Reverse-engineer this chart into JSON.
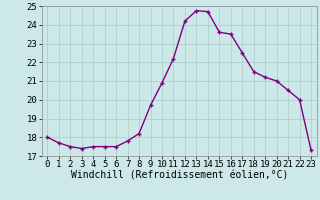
{
  "x": [
    0,
    1,
    2,
    3,
    4,
    5,
    6,
    7,
    8,
    9,
    10,
    11,
    12,
    13,
    14,
    15,
    16,
    17,
    18,
    19,
    20,
    21,
    22,
    23
  ],
  "y": [
    18.0,
    17.7,
    17.5,
    17.4,
    17.5,
    17.5,
    17.5,
    17.8,
    18.2,
    19.7,
    20.9,
    22.2,
    24.2,
    24.75,
    24.7,
    23.6,
    23.5,
    22.5,
    21.5,
    21.2,
    21.0,
    20.5,
    20.0,
    17.3
  ],
  "line_color": "#800080",
  "marker": "+",
  "bg_color": "#cce8e8",
  "grid_color": "#aacccc",
  "xlabel": "Windchill (Refroidissement éolien,°C)",
  "xlabel_fontsize": 7,
  "tick_fontsize": 6.5,
  "ylim": [
    17,
    25
  ],
  "yticks": [
    17,
    18,
    19,
    20,
    21,
    22,
    23,
    24,
    25
  ],
  "xticks": [
    0,
    1,
    2,
    3,
    4,
    5,
    6,
    7,
    8,
    9,
    10,
    11,
    12,
    13,
    14,
    15,
    16,
    17,
    18,
    19,
    20,
    21,
    22,
    23
  ],
  "markersize": 3,
  "linewidth": 1.0,
  "figsize": [
    3.2,
    2.0
  ],
  "dpi": 100
}
